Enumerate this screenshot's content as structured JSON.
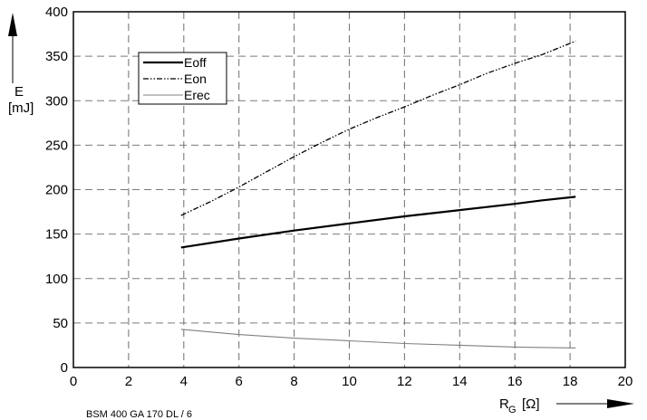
{
  "chart_data": {
    "type": "line",
    "title": "",
    "xlabel": "R",
    "xlabel_subscript": "G",
    "xlabel_unit": "[Ω]",
    "ylabel": "E",
    "ylabel_unit": "[mJ]",
    "xlim": [
      0,
      20
    ],
    "ylim": [
      0,
      400
    ],
    "x_ticks": [
      0,
      2,
      4,
      6,
      8,
      10,
      12,
      14,
      16,
      18,
      20
    ],
    "y_ticks": [
      0,
      50,
      100,
      150,
      200,
      250,
      300,
      350,
      400
    ],
    "grid": true,
    "legend_position": "top-left",
    "series": [
      {
        "name": "Eoff",
        "style": "solid-thick",
        "color": "#000000",
        "x": [
          3.9,
          6,
          8,
          10,
          12,
          14,
          16,
          17,
          18.2
        ],
        "y": [
          135,
          145,
          154,
          162,
          170,
          177,
          184,
          188,
          192
        ]
      },
      {
        "name": "Eon",
        "style": "dash-dot",
        "color": "#000000",
        "x": [
          3.9,
          5,
          6,
          7,
          8,
          9,
          10,
          11,
          12,
          13,
          14,
          15,
          16,
          17,
          18.2
        ],
        "y": [
          171,
          187,
          203,
          220,
          237,
          253,
          268,
          281,
          293,
          306,
          318,
          331,
          342,
          352,
          367
        ]
      },
      {
        "name": "Erec",
        "style": "solid-thin",
        "color": "#808080",
        "x": [
          3.9,
          6,
          8,
          10,
          12,
          14,
          16,
          18.2
        ],
        "y": [
          43,
          37,
          33,
          30,
          27,
          25,
          23,
          22
        ]
      }
    ]
  },
  "footer": {
    "text": "BSM 400 GA 170 DL / 6"
  }
}
